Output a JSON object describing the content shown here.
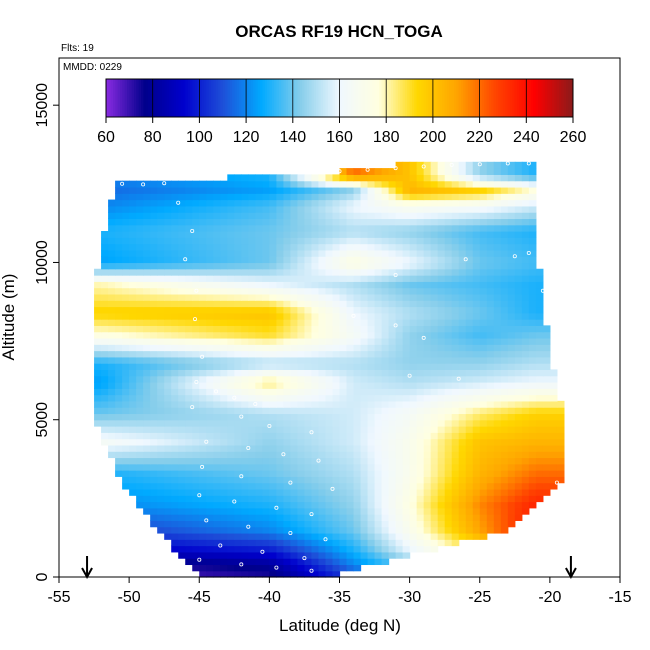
{
  "chart_data": {
    "type": "heatmap",
    "title": "ORCAS RF19 HCN_TOGA",
    "notes": [
      "Flts: 19",
      "MMDD: 0229"
    ],
    "xlabel": "Latitude (deg N)",
    "ylabel": "Altitude (m)",
    "xlim": [
      -55,
      -15
    ],
    "ylim": [
      0,
      16500
    ],
    "x_ticks": [
      -55,
      -50,
      -45,
      -40,
      -35,
      -30,
      -25,
      -20,
      -15
    ],
    "y_ticks": [
      0,
      5000,
      10000,
      15000
    ],
    "colorbar": {
      "ticks": [
        60,
        80,
        100,
        120,
        140,
        160,
        180,
        200,
        220,
        240,
        260
      ],
      "range": [
        60,
        260
      ],
      "colors": [
        "#8a2be2",
        "#00008b",
        "#0000cd",
        "#1e4fd8",
        "#00aaff",
        "#87ceeb",
        "#f0f8ff",
        "#ffffe0",
        "#ffd700",
        "#ffa500",
        "#ff4500",
        "#ff0000",
        "#8b1a1a"
      ]
    },
    "markers": [
      -53,
      -18.5
    ],
    "envelope": {
      "alt": [
        0,
        1500,
        3000,
        5000,
        7000,
        9000,
        10500,
        12500,
        13000
      ],
      "lat_left": [
        -45,
        -48,
        -50.5,
        -52.5,
        -52.5,
        -52.5,
        -52,
        -51,
        -31
      ],
      "lat_right": [
        -36,
        -23,
        -19,
        -19,
        -20,
        -20.5,
        -21,
        -21,
        -21
      ]
    },
    "field": [
      {
        "alt": 12800,
        "lat": [
          -52,
          -40,
          -34,
          -30,
          -25,
          -21
        ],
        "values": [
          120,
          130,
          220,
          200,
          145,
          130
        ]
      },
      {
        "alt": 12300,
        "lat": [
          -52,
          -40,
          -34,
          -30,
          -25,
          -21
        ],
        "values": [
          115,
          125,
          145,
          205,
          195,
          175
        ]
      },
      {
        "alt": 11800,
        "lat": [
          -52,
          -40,
          -34,
          -30,
          -25,
          -21
        ],
        "values": [
          120,
          135,
          160,
          170,
          165,
          155
        ]
      },
      {
        "alt": 11000,
        "lat": [
          -52,
          -40,
          -34,
          -30,
          -25,
          -21
        ],
        "values": [
          130,
          140,
          150,
          145,
          135,
          130
        ]
      },
      {
        "alt": 10000,
        "lat": [
          -52,
          -40,
          -34,
          -30,
          -25,
          -21
        ],
        "values": [
          125,
          140,
          175,
          160,
          140,
          135
        ]
      },
      {
        "alt": 9300,
        "lat": [
          -52,
          -40,
          -34,
          -30,
          -25,
          -21
        ],
        "values": [
          180,
          160,
          150,
          140,
          135,
          130
        ]
      },
      {
        "alt": 8400,
        "lat": [
          -52,
          -40,
          -34,
          -30,
          -25,
          -21
        ],
        "values": [
          195,
          200,
          160,
          150,
          140,
          130
        ]
      },
      {
        "alt": 7700,
        "lat": [
          -52,
          -40,
          -34,
          -30,
          -25,
          -21
        ],
        "values": [
          175,
          190,
          165,
          145,
          135,
          140
        ]
      },
      {
        "alt": 6800,
        "lat": [
          -52,
          -40,
          -34,
          -30,
          -25,
          -21
        ],
        "values": [
          130,
          150,
          150,
          145,
          145,
          150
        ]
      },
      {
        "alt": 6200,
        "lat": [
          -52,
          -40,
          -34,
          -30,
          -25,
          -21
        ],
        "values": [
          125,
          185,
          155,
          150,
          155,
          160
        ]
      },
      {
        "alt": 5200,
        "lat": [
          -52,
          -40,
          -34,
          -30,
          -25,
          -21
        ],
        "values": [
          140,
          150,
          155,
          165,
          185,
          195
        ]
      },
      {
        "alt": 4300,
        "lat": [
          -52,
          -40,
          -34,
          -30,
          -25,
          -21
        ],
        "values": [
          165,
          145,
          155,
          170,
          200,
          205
        ]
      },
      {
        "alt": 3300,
        "lat": [
          -52,
          -40,
          -34,
          -30,
          -25,
          -21
        ],
        "values": [
          130,
          140,
          150,
          170,
          205,
          220
        ]
      },
      {
        "alt": 2300,
        "lat": [
          -52,
          -40,
          -34,
          -30,
          -25,
          -21
        ],
        "values": [
          120,
          130,
          145,
          175,
          215,
          235
        ]
      },
      {
        "alt": 1500,
        "lat": [
          -52,
          -40,
          -34,
          -30,
          -25,
          -21
        ],
        "values": [
          105,
          120,
          140,
          170,
          210,
          240
        ]
      },
      {
        "alt": 900,
        "lat": [
          -52,
          -40,
          -34,
          -30,
          -25,
          -21
        ],
        "values": [
          90,
          100,
          130,
          160,
          190,
          200
        ]
      },
      {
        "alt": 400,
        "lat": [
          -52,
          -40,
          -34,
          -30,
          -25,
          -21
        ],
        "values": [
          70,
          80,
          120,
          140,
          160,
          170
        ]
      },
      {
        "alt": 100,
        "lat": [
          -52,
          -40,
          -34,
          -30,
          -25,
          -21
        ],
        "values": [
          65,
          75,
          110,
          130,
          150,
          160
        ]
      }
    ],
    "flight_points": [
      [
        -51.5,
        12450
      ],
      [
        -50.5,
        12500
      ],
      [
        -49,
        12480
      ],
      [
        -47.5,
        12520
      ],
      [
        -46.5,
        11900
      ],
      [
        -45.5,
        11000
      ],
      [
        -46,
        10100
      ],
      [
        -45.2,
        9100
      ],
      [
        -45.3,
        8200
      ],
      [
        -44.8,
        7000
      ],
      [
        -45.2,
        6200
      ],
      [
        -43.8,
        5900
      ],
      [
        -42.5,
        5700
      ],
      [
        -41,
        5500
      ],
      [
        -45.5,
        5400
      ],
      [
        -42,
        5100
      ],
      [
        -40,
        4800
      ],
      [
        -37,
        4600
      ],
      [
        -44.5,
        4300
      ],
      [
        -41.5,
        4100
      ],
      [
        -39,
        3900
      ],
      [
        -36.5,
        3700
      ],
      [
        -44.8,
        3500
      ],
      [
        -42,
        3200
      ],
      [
        -38.5,
        3000
      ],
      [
        -35.5,
        2800
      ],
      [
        -45,
        2600
      ],
      [
        -42.5,
        2400
      ],
      [
        -39.5,
        2200
      ],
      [
        -37,
        2000
      ],
      [
        -44.5,
        1800
      ],
      [
        -41.5,
        1600
      ],
      [
        -38.5,
        1400
      ],
      [
        -36,
        1200
      ],
      [
        -43.5,
        1000
      ],
      [
        -40.5,
        800
      ],
      [
        -37.5,
        600
      ],
      [
        -45,
        550
      ],
      [
        -42,
        400
      ],
      [
        -39.5,
        300
      ],
      [
        -37,
        200
      ],
      [
        -35,
        12900
      ],
      [
        -33,
        12950
      ],
      [
        -31,
        13000
      ],
      [
        -29,
        13050
      ],
      [
        -27,
        13100
      ],
      [
        -25,
        13120
      ],
      [
        -23,
        13150
      ],
      [
        -21.5,
        13150
      ],
      [
        -34,
        8300
      ],
      [
        -31,
        8000
      ],
      [
        -29,
        7600
      ],
      [
        -30,
        6400
      ],
      [
        -26.5,
        6300
      ],
      [
        -31,
        9600
      ],
      [
        -26,
        10100
      ],
      [
        -22.5,
        10200
      ],
      [
        -21.5,
        10300
      ],
      [
        -20.5,
        9100
      ],
      [
        -19.5,
        3000
      ],
      [
        -19,
        2500
      ],
      [
        -18.8,
        2000
      ],
      [
        -18.7,
        1700
      ]
    ]
  }
}
